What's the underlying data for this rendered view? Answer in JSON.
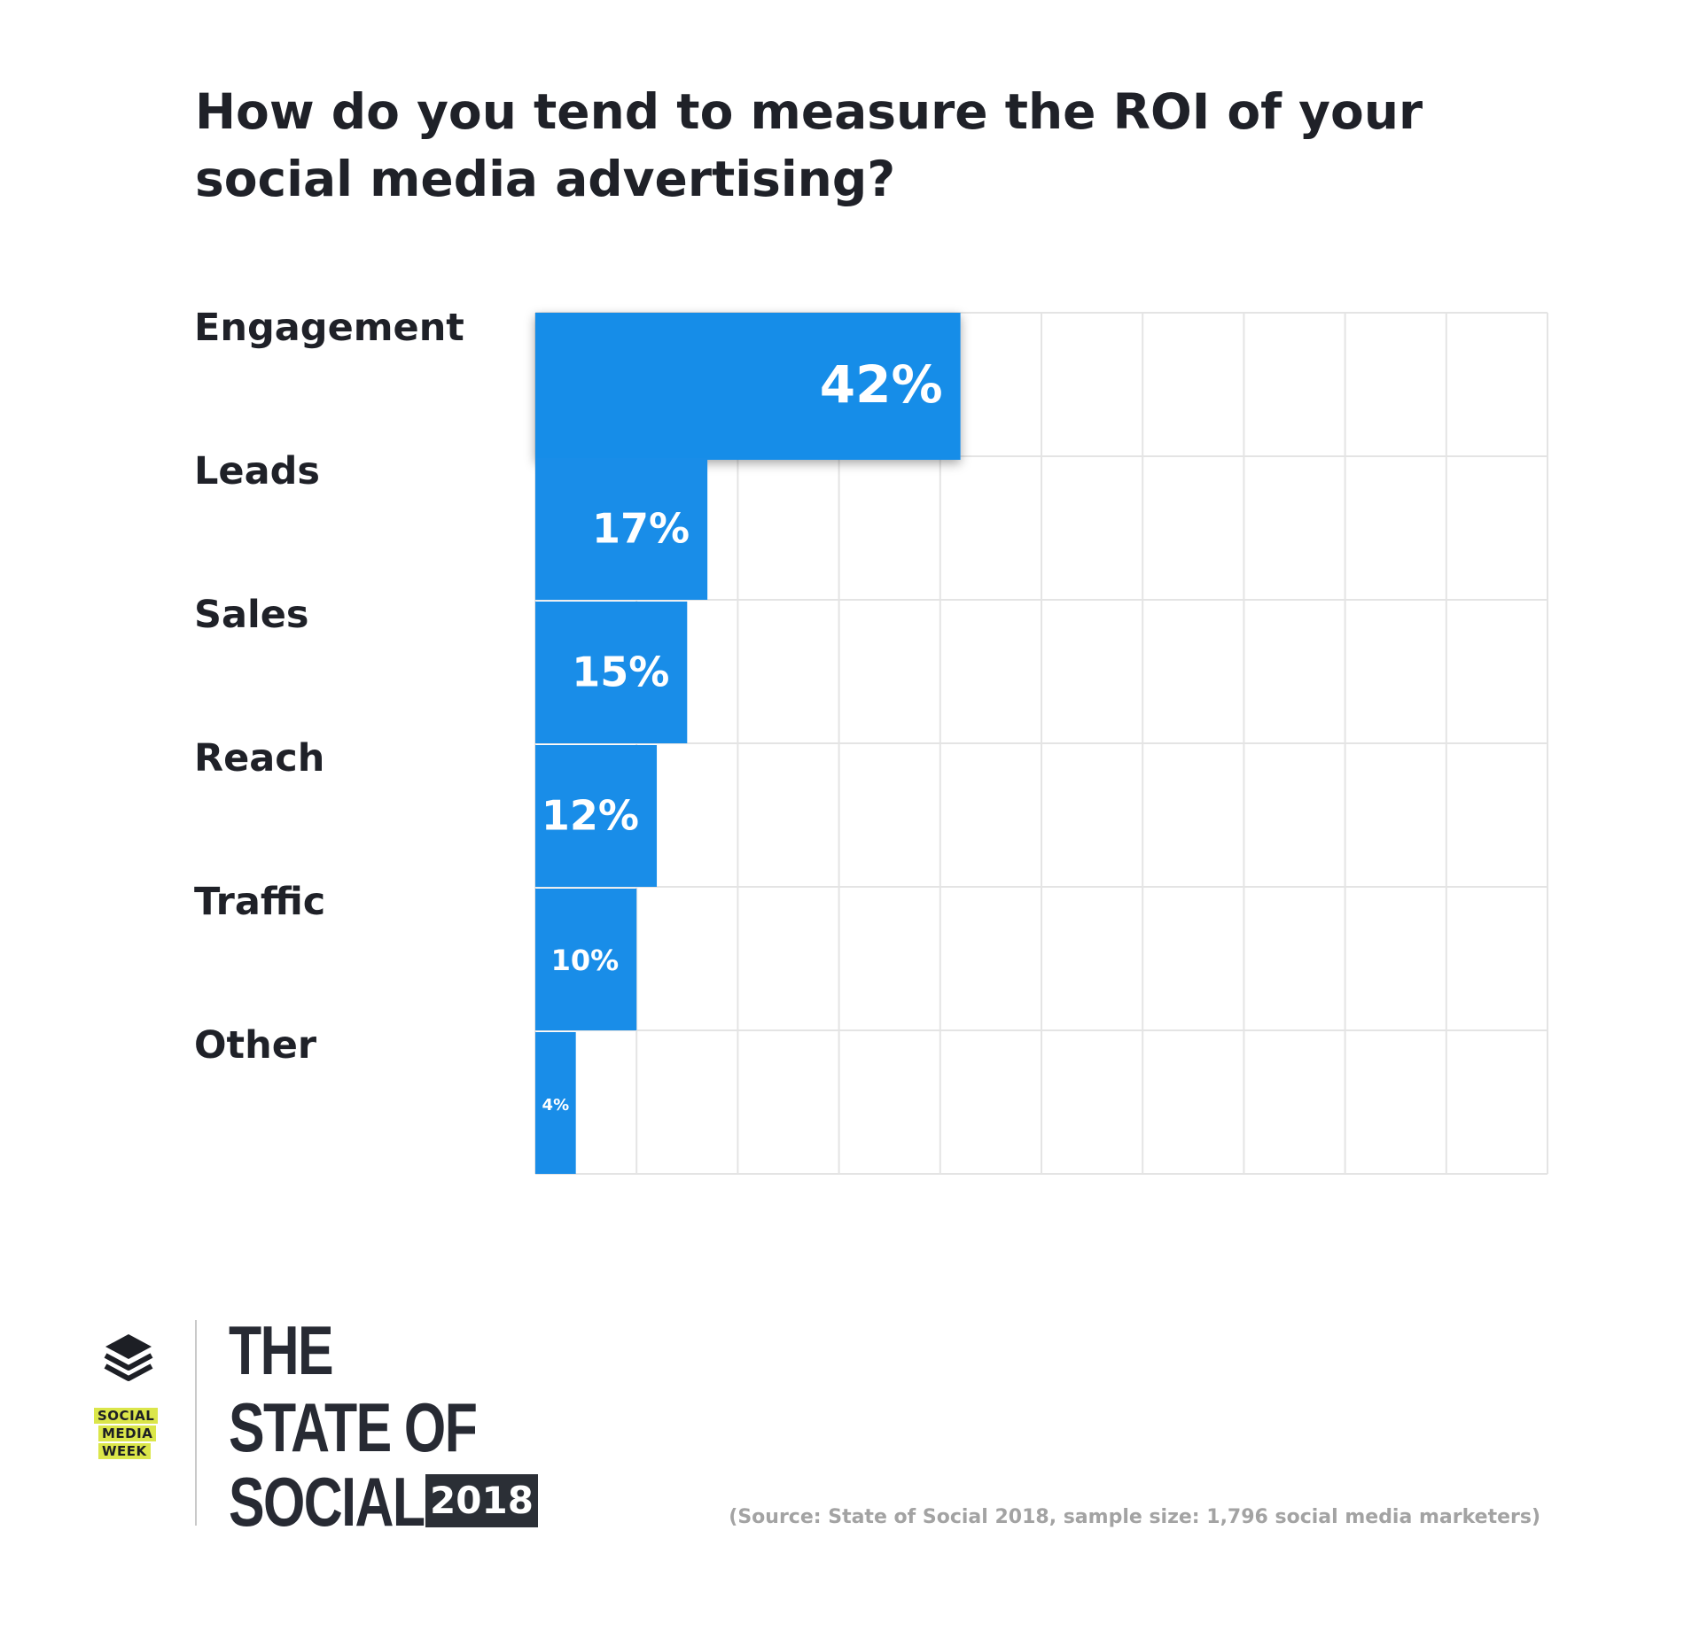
{
  "chart_data": {
    "type": "bar",
    "orientation": "horizontal",
    "title": "How do you tend to measure the ROI of your social media advertising?",
    "categories": [
      "Engagement",
      "Leads",
      "Sales",
      "Reach",
      "Traffic",
      "Other"
    ],
    "values": [
      42,
      17,
      15,
      12,
      10,
      4
    ],
    "value_labels": [
      "42%",
      "17%",
      "15%",
      "12%",
      "10%",
      "4%"
    ],
    "unit": "%",
    "xlim": [
      0,
      100
    ],
    "grid": true,
    "highlight": "Engagement"
  },
  "colors": {
    "bar": "#198de8",
    "grid": "#e4e4e4",
    "text": "#1f2128",
    "badge": "#2b2f36",
    "tag": "#dbe64a"
  },
  "branding": {
    "buffer_icon": "buffer-stack-icon",
    "smw_lines": [
      "SOCIAL",
      "MEDIA",
      "WEEK"
    ],
    "report_lines": [
      "THE",
      "STATE OF",
      "SOCIAL"
    ],
    "year": "2018"
  },
  "source": "(Source: State of Social 2018, sample size: 1,796 social media marketers)"
}
